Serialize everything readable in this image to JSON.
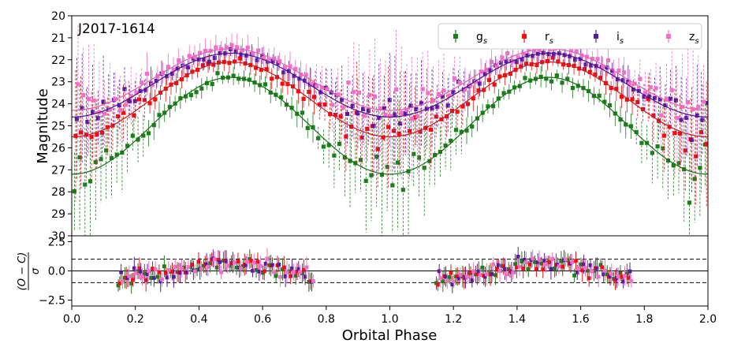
{
  "chart_data": [
    {
      "type": "scatter",
      "title": "J2017-1614",
      "xlabel": "",
      "ylabel": "Magnitude",
      "xlim": [
        0.0,
        2.0
      ],
      "ylim": [
        30,
        20
      ],
      "y_inverted": true,
      "yticks": [
        20,
        21,
        22,
        23,
        24,
        25,
        26,
        27,
        28,
        29,
        30
      ],
      "legend": "top-right",
      "series": [
        {
          "name": "g",
          "subscript": "s",
          "color": "#1e7d1e",
          "model_color": "#1a6e1a",
          "baseline": 27.2,
          "amplitude": 4.4,
          "sigma_base": 0.3,
          "sigma_faint": 1.8
        },
        {
          "name": "r",
          "subscript": "s",
          "color": "#ee1111",
          "model_color": "#c02020",
          "baseline": 25.5,
          "amplitude": 3.4,
          "sigma_base": 0.3,
          "sigma_faint": 1.6
        },
        {
          "name": "i",
          "subscript": "s",
          "color": "#5a1a9e",
          "model_color": "#4a1490",
          "baseline": 24.6,
          "amplitude": 2.9,
          "sigma_base": 0.3,
          "sigma_faint": 1.5
        },
        {
          "name": "z",
          "subscript": "s",
          "color": "#f070c8",
          "model_color": "#e060b8",
          "baseline": 24.3,
          "amplitude": 2.8,
          "sigma_base": 0.4,
          "sigma_faint": 1.6
        }
      ],
      "model": "magnitude = baseline - amplitude * sin^2(pi * phase)"
    },
    {
      "type": "scatter",
      "title": "",
      "xlabel": "Orbital Phase",
      "ylabel": "(O − C)/σ",
      "xlim": [
        0.0,
        2.0
      ],
      "ylim": [
        -3.0,
        3.0
      ],
      "xticks": [
        "0.0",
        "0.2",
        "0.4",
        "0.6",
        "0.8",
        "1.0",
        "1.2",
        "1.4",
        "1.6",
        "1.8",
        "2.0"
      ],
      "yticks": [
        "2.5",
        "0.0",
        "−2.5"
      ],
      "ytick_values": [
        2.5,
        0.0,
        -2.5
      ],
      "reference_lines": [
        {
          "y": 0.0,
          "style": "solid"
        },
        {
          "y": 1.0,
          "style": "dashed"
        },
        {
          "y": -1.0,
          "style": "dashed"
        },
        {
          "y": 3.0,
          "style": "dashdot"
        },
        {
          "y": -3.0,
          "style": "dashdot"
        }
      ],
      "residual_phase_ranges": [
        [
          0.14,
          0.76
        ],
        [
          1.14,
          1.76
        ]
      ],
      "residual_scatter": 0.9,
      "residual_error": 0.75
    }
  ]
}
